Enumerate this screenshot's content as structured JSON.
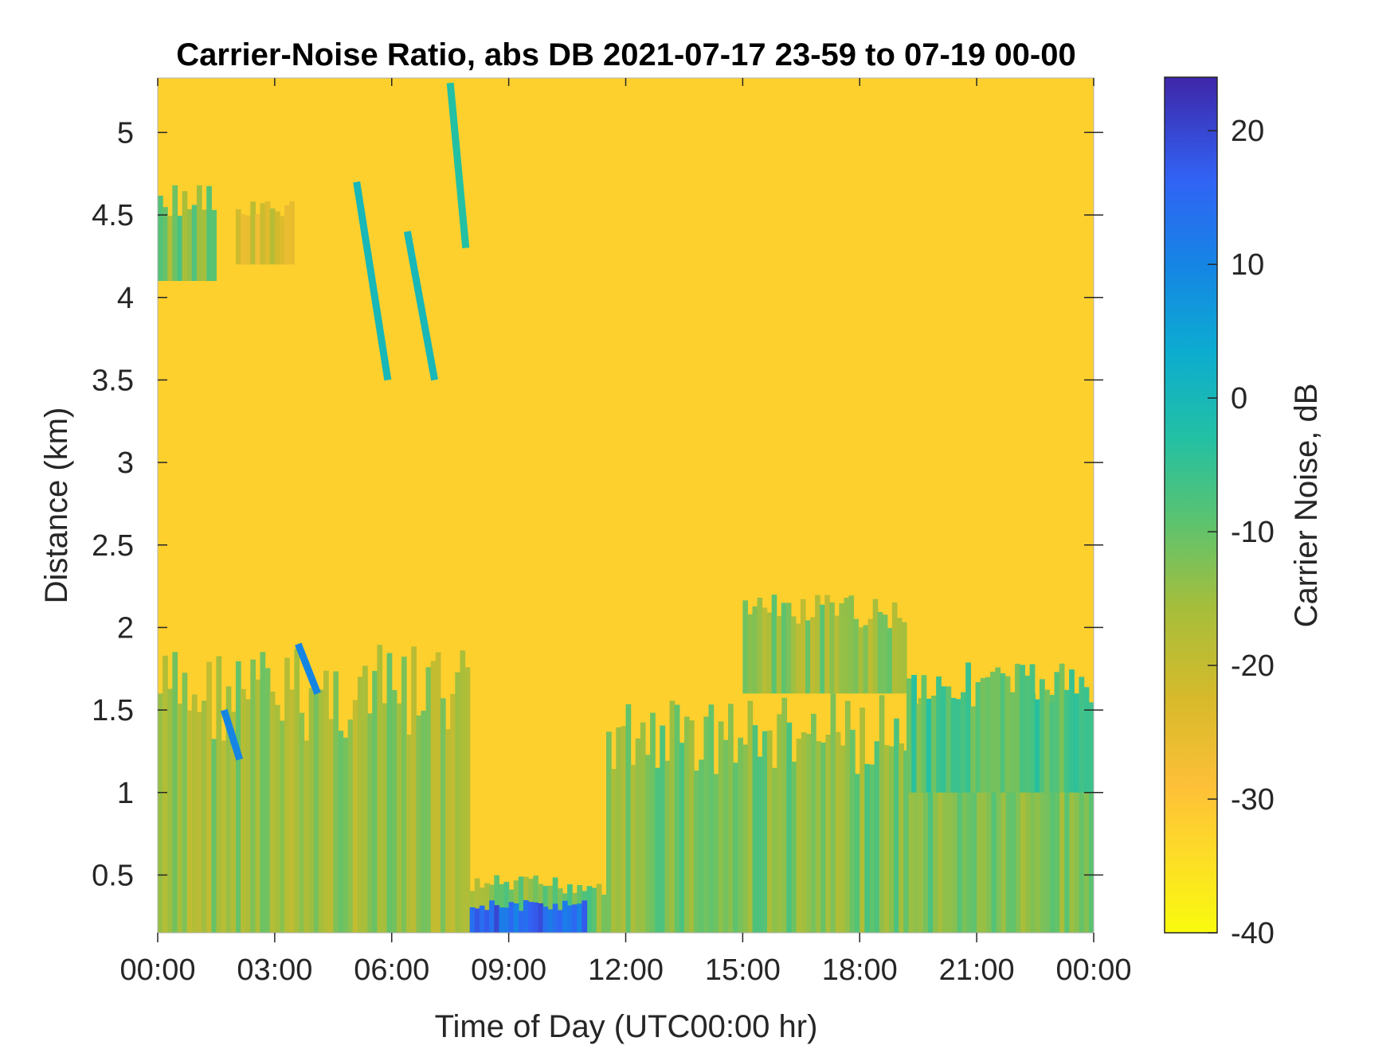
{
  "chart_data": {
    "type": "heatmap",
    "title": "Carrier-Noise Ratio, abs DB 2021-07-17 23-59 to 07-19 00-00",
    "xlabel": "Time of Day (UTC00:00 hr)",
    "ylabel": "Distance (km)",
    "xlim": [
      0,
      24
    ],
    "ylim": [
      0.15,
      5.33
    ],
    "xticks": [
      0,
      3,
      6,
      9,
      12,
      15,
      18,
      21,
      24
    ],
    "xtick_labels": [
      "00:00",
      "03:00",
      "06:00",
      "09:00",
      "12:00",
      "15:00",
      "18:00",
      "21:00",
      "00:00"
    ],
    "yticks": [
      0.5,
      1,
      1.5,
      2,
      2.5,
      3,
      3.5,
      4,
      4.5,
      5
    ],
    "ytick_labels": [
      "0.5",
      "1",
      "1.5",
      "2",
      "2.5",
      "3",
      "3.5",
      "4",
      "4.5",
      "5"
    ],
    "colorbar": {
      "label": "Carrier Noise, dB",
      "range": [
        -40,
        24
      ],
      "ticks": [
        20,
        10,
        0,
        -10,
        -20,
        -30,
        -40
      ],
      "tick_labels": [
        "20",
        "10",
        "0",
        "-10",
        "-20",
        "-30",
        "-40"
      ],
      "colormap": "parula"
    },
    "background_value_db": -32,
    "units": {
      "x": "hours (UTC)",
      "y": "km",
      "value": "dB"
    },
    "regions": [
      {
        "desc": "low-level layer",
        "t0": 0.0,
        "t1": 8.0,
        "h0": 0.15,
        "h1": 1.9,
        "value": -15
      },
      {
        "desc": "morning near-surface",
        "t0": 8.0,
        "t1": 11.5,
        "h0": 0.15,
        "h1": 0.5,
        "value": -12
      },
      {
        "desc": "surface high signal",
        "t0": 8.0,
        "t1": 11.0,
        "h0": 0.15,
        "h1": 0.35,
        "value": 15
      },
      {
        "desc": "boundary layer afternoon",
        "t0": 11.5,
        "t1": 24.0,
        "h0": 0.15,
        "h1": 1.6,
        "value": -12
      },
      {
        "desc": "convective mixing",
        "t0": 15.0,
        "t1": 19.2,
        "h0": 1.6,
        "h1": 2.2,
        "value": -14
      },
      {
        "desc": "evening layer",
        "t0": 19.2,
        "t1": 24.0,
        "h0": 1.0,
        "h1": 1.8,
        "value": -8
      },
      {
        "desc": "upper aerosol patch",
        "t0": 0.0,
        "t1": 1.5,
        "h0": 4.1,
        "h1": 4.7,
        "value": -12
      },
      {
        "desc": "upper aerosol patch 2",
        "t0": 2.0,
        "t1": 3.5,
        "h0": 4.2,
        "h1": 4.6,
        "value": -22
      }
    ],
    "streaks": [
      {
        "desc": "descending cloud streak",
        "t0": 5.1,
        "h0": 4.7,
        "t1": 5.9,
        "h1": 3.5,
        "value": 0
      },
      {
        "desc": "descending cloud streak 2",
        "t0": 6.4,
        "h0": 4.4,
        "t1": 7.1,
        "h1": 3.5,
        "value": 0
      },
      {
        "desc": "upper streak",
        "t0": 7.5,
        "h0": 5.3,
        "t1": 7.9,
        "h1": 4.3,
        "value": -3
      },
      {
        "desc": "aerosol top",
        "t0": 3.6,
        "h0": 1.9,
        "t1": 4.1,
        "h1": 1.6,
        "value": 10
      },
      {
        "desc": "aerosol top 2",
        "t0": 1.7,
        "h0": 1.5,
        "t1": 2.1,
        "h1": 1.2,
        "value": 10
      }
    ]
  }
}
